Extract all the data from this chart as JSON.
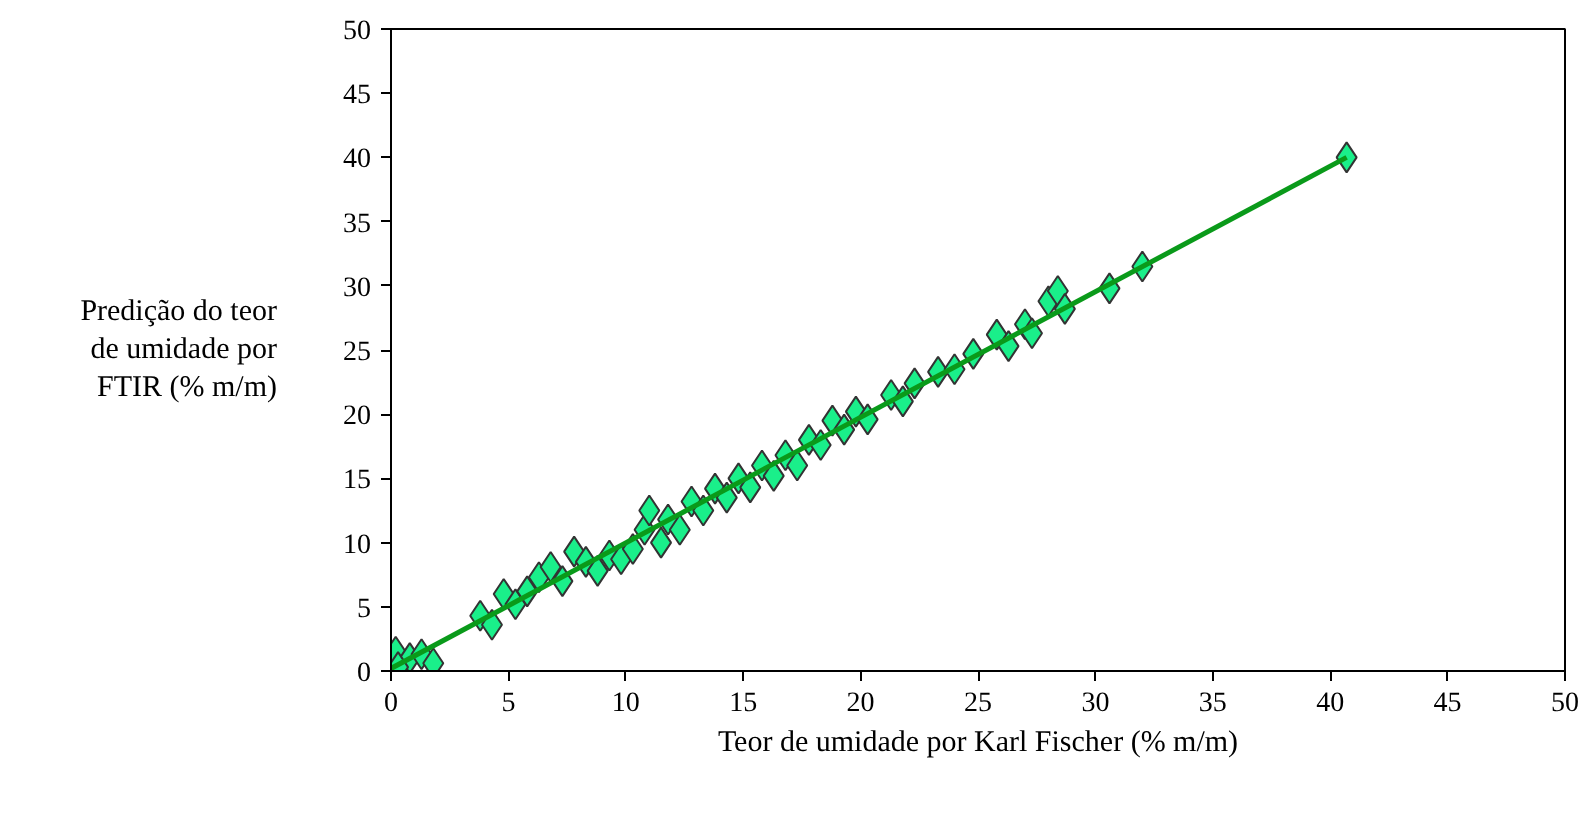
{
  "chart_data": {
    "type": "scatter",
    "xlabel": "Teor de umidade por Karl Fischer (% m/m)",
    "ylabel": "Predição do teor\nde umidade por\nFTIR (% m/m)",
    "xlim": [
      0,
      50
    ],
    "ylim": [
      0,
      50
    ],
    "xticks": [
      0,
      5,
      10,
      15,
      20,
      25,
      30,
      35,
      40,
      45,
      50
    ],
    "yticks": [
      0,
      5,
      10,
      15,
      20,
      25,
      30,
      35,
      40,
      45,
      50
    ],
    "grid": false,
    "series": [
      {
        "color": "#1aef8a",
        "marker": "diamond",
        "x": [
          0.2,
          0.8,
          1.3,
          1.8,
          0.3,
          3.8,
          4.3,
          4.8,
          5.3,
          5.8,
          6.3,
          6.8,
          7.3,
          7.8,
          8.3,
          8.8,
          9.3,
          9.8,
          10.3,
          10.8,
          11.0,
          11.5,
          11.8,
          12.3,
          12.8,
          13.3,
          13.8,
          14.3,
          14.8,
          15.3,
          15.8,
          16.3,
          16.8,
          17.3,
          17.8,
          18.3,
          18.8,
          19.3,
          19.8,
          20.3,
          21.3,
          21.8,
          22.3,
          23.3,
          24.0,
          24.8,
          25.8,
          26.3,
          27.0,
          27.3,
          28.0,
          28.4,
          28.7,
          30.6,
          32.0,
          40.7
        ],
        "values": [
          1.5,
          1.0,
          1.3,
          0.6,
          0.3,
          4.3,
          3.6,
          6.0,
          5.2,
          6.2,
          7.3,
          8.1,
          7.0,
          9.3,
          8.5,
          7.8,
          9.0,
          8.7,
          9.5,
          11.0,
          12.5,
          10.0,
          11.8,
          11.0,
          13.2,
          12.5,
          14.2,
          13.5,
          15.0,
          14.3,
          16.0,
          15.2,
          16.8,
          16.0,
          18.0,
          17.6,
          19.5,
          18.8,
          20.2,
          19.6,
          21.5,
          21.0,
          22.4,
          23.3,
          23.5,
          24.7,
          26.2,
          25.3,
          27.0,
          26.3,
          28.8,
          29.6,
          28.2,
          29.8,
          31.5,
          40.0
        ]
      },
      {
        "type": "line",
        "marker": "none",
        "color": "#0a9a1a",
        "x": [
          0,
          40.7
        ],
        "values": [
          0.2,
          40.0
        ]
      }
    ]
  }
}
